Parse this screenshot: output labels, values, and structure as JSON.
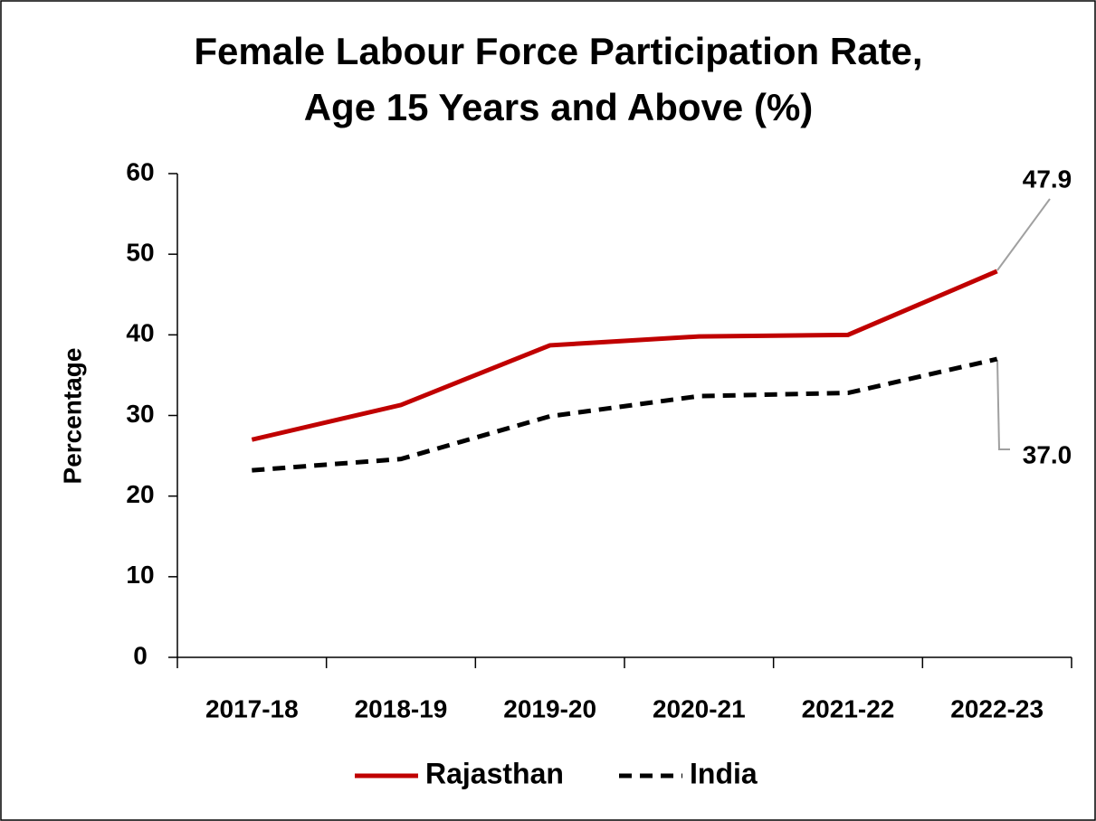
{
  "chart_data": {
    "type": "line",
    "title": [
      "Female Labour Force Participation Rate,",
      "Age 15 Years and Above (%)"
    ],
    "y_label": "Percentage",
    "categories": [
      "2017-18",
      "2018-19",
      "2019-20",
      "2020-21",
      "2021-22",
      "2022-23"
    ],
    "series": [
      {
        "name": "Rajasthan",
        "color": "#c00000",
        "dash": false,
        "values": [
          27.0,
          31.3,
          38.7,
          39.8,
          40.0,
          47.9
        ],
        "value_labels": [
          null,
          null,
          null,
          null,
          null,
          "47.9"
        ]
      },
      {
        "name": "India",
        "color": "#000000",
        "dash": true,
        "values": [
          23.2,
          24.6,
          29.9,
          32.4,
          32.8,
          37.0
        ],
        "value_labels": [
          null,
          null,
          null,
          null,
          null,
          "37.0"
        ]
      }
    ],
    "ylim": [
      0,
      60
    ],
    "yticks": [
      0,
      10,
      20,
      30,
      40,
      50,
      60
    ],
    "grid": false,
    "legend": "bottom"
  }
}
